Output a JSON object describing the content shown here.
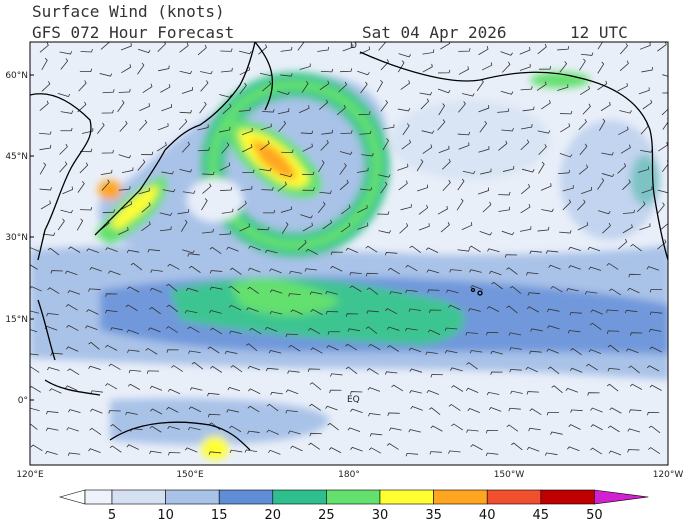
{
  "header": {
    "title": "Surface Wind (knots)",
    "subtitle": "GFS 072 Hour Forecast",
    "date": "Sat 04 Apr 2026",
    "time": "12 UTC"
  },
  "map": {
    "lat_labels": [
      "60°N",
      "45°N",
      "30°N",
      "15°N",
      "0°"
    ],
    "lon_labels": [
      "120°E",
      "150°E",
      "180°",
      "150°W",
      "120°W"
    ],
    "equator_label": "EQ",
    "marker_label": "D"
  },
  "colorbar": {
    "labels": [
      "5",
      "10",
      "15",
      "20",
      "25",
      "30",
      "35",
      "40",
      "45",
      "50"
    ],
    "colors": [
      "#ffffff",
      "#eef2fa",
      "#d5e1f3",
      "#a9c2e8",
      "#5f8ed6",
      "#2fbf8f",
      "#63e06e",
      "#ffff33",
      "#ffa620",
      "#f0502e",
      "#c00000",
      "#d020d0"
    ]
  }
}
